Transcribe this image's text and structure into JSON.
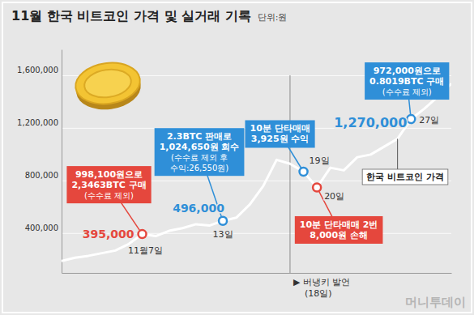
{
  "chart_data": {
    "type": "line",
    "title": "11월 한국 비트코인 가격 및 실거래 기록",
    "subtitle": "단위:원",
    "source": "머니투데이",
    "x": [
      1,
      2,
      3,
      4,
      5,
      6,
      7,
      8,
      9,
      10,
      11,
      12,
      13,
      14,
      15,
      16,
      17,
      18,
      19,
      20,
      21,
      22,
      23,
      24,
      25,
      26,
      27,
      28,
      29,
      30
    ],
    "xlim": [
      1,
      30
    ],
    "ylim": [
      100000,
      1800000
    ],
    "yticks": [
      {
        "value": 400000,
        "label": "400,000"
      },
      {
        "value": 800000,
        "label": "800,000"
      },
      {
        "value": 1200000,
        "label": "1,200,000"
      },
      {
        "value": 1600000,
        "label": "1,600,000"
      }
    ],
    "grid": true,
    "tick_labels": "y",
    "series": [
      {
        "name": "한국 비트코인 가격",
        "color": "#ffffff",
        "values": [
          190000,
          215000,
          230000,
          250000,
          270000,
          320000,
          395000,
          380000,
          420000,
          440000,
          470000,
          460000,
          496000,
          520000,
          620000,
          760000,
          960000,
          930000,
          870000,
          750000,
          900000,
          880000,
          980000,
          1000000,
          1060000,
          1120000,
          1270000,
          1350000,
          1440000,
          1540000
        ]
      }
    ],
    "annotations": [
      {
        "x": 7,
        "x_label": "11월7일",
        "value": 395000,
        "value_label": "395,000",
        "color": "#e5473d",
        "text": [
          "998,100원으로",
          "2,3463BTC 구매",
          "(수수료 제외)"
        ]
      },
      {
        "x": 13,
        "x_label": "13일",
        "value": 496000,
        "value_label": "496,000",
        "color": "#2f8fd8",
        "text": [
          "2.3BTC 판매로",
          "1,024,650원 회수",
          "(수수료 제외 후",
          "수익:26,550원)"
        ]
      },
      {
        "x": 19,
        "x_label": "19일",
        "value": 870000,
        "color": "#2f8fd8",
        "text": [
          "10분 단타매매",
          "3,925원 수익"
        ]
      },
      {
        "x": 20,
        "x_label": "20일",
        "value": 750000,
        "color": "#e5473d",
        "text": [
          "10분 단타매매 2번",
          "8,000원 손해"
        ]
      },
      {
        "x": 27,
        "x_label": "27일",
        "value": 1270000,
        "value_label": "1,270,000",
        "color": "#2f8fd8",
        "text": [
          "972,000원으로",
          "0.8019BTC 구매",
          "(수수료 제외)"
        ]
      }
    ],
    "events": [
      {
        "x": 18,
        "text": [
          "▶ 버냉키 발언",
          "(18일)"
        ]
      }
    ]
  }
}
